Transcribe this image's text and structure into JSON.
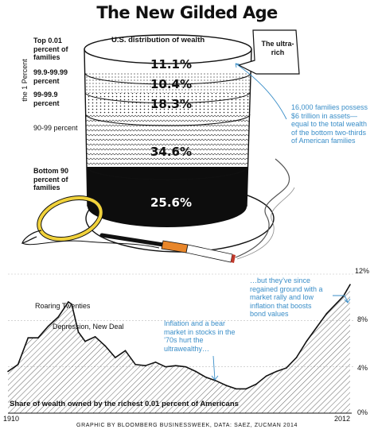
{
  "title": "The New Gilded Age",
  "hat": {
    "label": "U.S. distribution of wealth",
    "callout": "The ultra-rich",
    "note": "16,000 families possess $6 trillion in assets—equal to the total wealth of the bottom two-thirds of American families",
    "group_axis": "the 1 Percent",
    "segments": [
      {
        "name": "Top 0.01 percent of families",
        "value": "11.1%"
      },
      {
        "name": "99.9-99.99 percent",
        "value": "10.4%"
      },
      {
        "name": "99-99.9 percent",
        "value": "18.3%"
      },
      {
        "name": "90-99 percent",
        "value": "34.6%"
      },
      {
        "name": "Bottom 90 percent of families",
        "value": "25.6%"
      }
    ]
  },
  "chart_data": {
    "type": "area",
    "title": "Share of wealth owned by the richest 0.01 percent of Americans",
    "x": [
      1910,
      1913,
      1916,
      1919,
      1922,
      1925,
      1928,
      1929,
      1931,
      1933,
      1936,
      1939,
      1942,
      1945,
      1948,
      1951,
      1954,
      1957,
      1960,
      1963,
      1966,
      1969,
      1972,
      1975,
      1978,
      1981,
      1984,
      1987,
      1990,
      1993,
      1996,
      1999,
      2002,
      2005,
      2008,
      2010,
      2011,
      2012
    ],
    "values": [
      3.6,
      4.2,
      6.5,
      6.5,
      7.5,
      8.3,
      9.6,
      9.4,
      7.0,
      6.2,
      6.6,
      5.8,
      4.8,
      5.4,
      4.2,
      4.1,
      4.4,
      4.0,
      4.1,
      4.0,
      3.6,
      3.1,
      2.8,
      2.4,
      2.1,
      2.1,
      2.5,
      3.2,
      3.6,
      3.9,
      4.8,
      6.2,
      7.4,
      8.6,
      9.5,
      10.1,
      10.6,
      11.1
    ],
    "ylim": [
      0,
      12
    ],
    "yticks": [
      "12%",
      "8%",
      "4%",
      "0%"
    ],
    "xlabels": [
      "1910",
      "2012"
    ],
    "annotations": [
      "Roaring Twenties",
      "Depression, New Deal",
      "Inflation and a bear market in stocks in the ’70s hurt the ultrawealthy…",
      "…but they’ve since regained ground with a market rally and low inflation that boosts bond values"
    ]
  },
  "credit": "GRAPHIC BY BLOOMBERG BUSINESSWEEK, DATA: SAEZ, ZUCMAN 2014",
  "colors": {
    "accent": "#3a8ec8",
    "ink": "#111111"
  }
}
